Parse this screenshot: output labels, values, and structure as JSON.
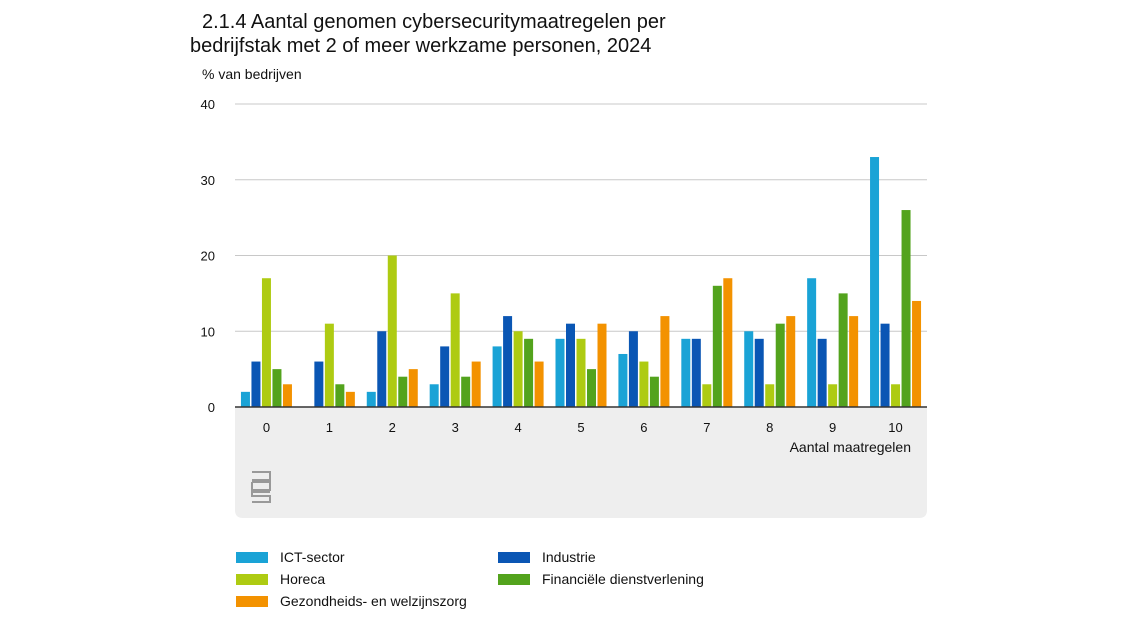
{
  "chart_data": {
    "type": "bar",
    "title": "2.1.4 Aantal genomen cybersecuritymaatregelen per bedrijfstak met 2 of meer werkzame personen, 2024",
    "title_lines": [
      "2.1.4 Aantal genomen cybersecuritymaatregelen per",
      "bedrijfstak met 2 of meer werkzame personen, 2024"
    ],
    "ylabel": "% van bedrijven",
    "xlabel": "Aantal maatregelen",
    "ylim": [
      0,
      40
    ],
    "yticks": [
      0,
      10,
      20,
      30,
      40
    ],
    "grid": true,
    "legend_placement": "bottom",
    "categories": [
      "0",
      "1",
      "2",
      "3",
      "4",
      "5",
      "6",
      "7",
      "8",
      "9",
      "10"
    ],
    "series": [
      {
        "name": "ICT-sector",
        "color": "#1aa3d6",
        "values": [
          2,
          0,
          2,
          3,
          8,
          9,
          7,
          9,
          10,
          17,
          33
        ]
      },
      {
        "name": "Industrie",
        "color": "#0a56b4",
        "values": [
          6,
          6,
          10,
          8,
          12,
          11,
          10,
          9,
          9,
          9,
          11
        ]
      },
      {
        "name": "Horeca",
        "color": "#aecb12",
        "values": [
          17,
          11,
          20,
          15,
          10,
          9,
          6,
          3,
          3,
          3,
          3
        ]
      },
      {
        "name": "Financiële dienstverlening",
        "color": "#53a31d",
        "values": [
          5,
          3,
          4,
          4,
          9,
          5,
          4,
          16,
          11,
          15,
          26
        ]
      },
      {
        "name": "Gezondheids- en welzijnszorg",
        "color": "#f39200",
        "values": [
          3,
          2,
          5,
          6,
          6,
          11,
          12,
          17,
          12,
          12,
          14
        ]
      }
    ],
    "logo": "cbs"
  }
}
